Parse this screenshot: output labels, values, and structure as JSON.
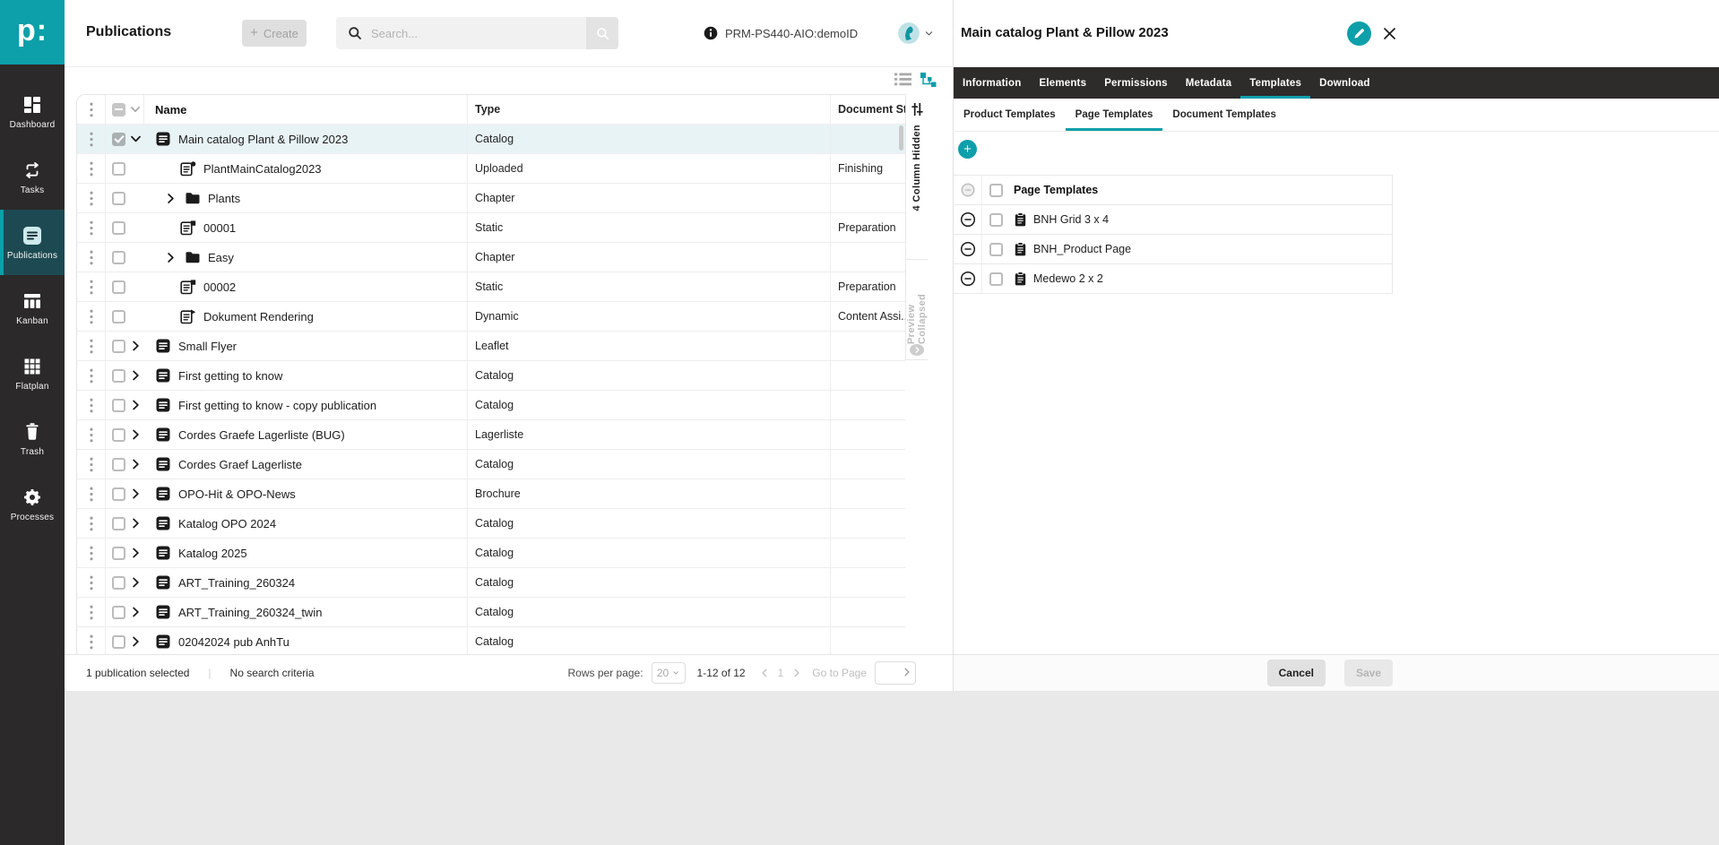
{
  "colors": {
    "accent": "#0d9faa",
    "sidebar_bg": "#2b2929",
    "tabbar_bg": "#2e2b2b",
    "selected_row_bg": "#e8f3f6"
  },
  "sidebar": {
    "logo_text": "p:",
    "items": [
      {
        "id": "dashboard",
        "label": "Dashboard",
        "icon": "dashboard",
        "active": false
      },
      {
        "id": "tasks",
        "label": "Tasks",
        "icon": "tasks",
        "active": false
      },
      {
        "id": "publications",
        "label": "Publications",
        "icon": "publications",
        "active": true
      },
      {
        "id": "kanban",
        "label": "Kanban",
        "icon": "kanban",
        "active": false
      },
      {
        "id": "flatplan",
        "label": "Flatplan",
        "icon": "flatplan",
        "active": false
      },
      {
        "id": "trash",
        "label": "Trash",
        "icon": "trash",
        "active": false
      },
      {
        "id": "processes",
        "label": "Processes",
        "icon": "processes",
        "active": false
      }
    ]
  },
  "header": {
    "title": "Publications",
    "create_label": "Create",
    "search_placeholder": "Search...",
    "env_label": "PRM-PS440-AIO:demoID"
  },
  "main_table": {
    "columns": {
      "name": "Name",
      "type": "Type",
      "status": "Document St..."
    },
    "rows": [
      {
        "name": "Main catalog Plant & Pillow 2023",
        "type": "Catalog",
        "status": "",
        "icon": "catalog",
        "depth": 0,
        "expander": "down",
        "selected": true,
        "checked": true
      },
      {
        "name": "PlantMainCatalog2023",
        "type": "Uploaded",
        "status": "Finishing",
        "icon": "doc-uploaded",
        "depth": 1,
        "expander": null,
        "selected": false,
        "checked": false
      },
      {
        "name": "Plants",
        "type": "Chapter",
        "status": "",
        "icon": "folder",
        "depth": 1,
        "expander": "right",
        "selected": false,
        "checked": false
      },
      {
        "name": "00001",
        "type": "Static",
        "status": "Preparation",
        "icon": "doc-static",
        "depth": 1,
        "expander": null,
        "selected": false,
        "checked": false
      },
      {
        "name": "Easy",
        "type": "Chapter",
        "status": "",
        "icon": "folder",
        "depth": 1,
        "expander": "right",
        "selected": false,
        "checked": false
      },
      {
        "name": "00002",
        "type": "Static",
        "status": "Preparation",
        "icon": "doc-static",
        "depth": 1,
        "expander": null,
        "selected": false,
        "checked": false
      },
      {
        "name": "Dokument Rendering",
        "type": "Dynamic",
        "status": "Content Assi...",
        "icon": "doc-dynamic",
        "depth": 1,
        "expander": null,
        "selected": false,
        "checked": false
      },
      {
        "name": "Small Flyer",
        "type": "Leaflet",
        "status": "",
        "icon": "catalog",
        "depth": 0,
        "expander": "right",
        "selected": false,
        "checked": false
      },
      {
        "name": "First getting to know",
        "type": "Catalog",
        "status": "",
        "icon": "catalog",
        "depth": 0,
        "expander": "right",
        "selected": false,
        "checked": false
      },
      {
        "name": "First getting to know - copy publication",
        "type": "Catalog",
        "status": "",
        "icon": "catalog",
        "depth": 0,
        "expander": "right",
        "selected": false,
        "checked": false
      },
      {
        "name": "Cordes Graefe Lagerliste (BUG)",
        "type": "Lagerliste",
        "status": "",
        "icon": "catalog",
        "depth": 0,
        "expander": "right",
        "selected": false,
        "checked": false
      },
      {
        "name": "Cordes Graef Lagerliste",
        "type": "Catalog",
        "status": "",
        "icon": "catalog",
        "depth": 0,
        "expander": "right",
        "selected": false,
        "checked": false
      },
      {
        "name": "OPO-Hit & OPO-News",
        "type": "Brochure",
        "status": "",
        "icon": "catalog",
        "depth": 0,
        "expander": "right",
        "selected": false,
        "checked": false
      },
      {
        "name": "Katalog OPO 2024",
        "type": "Catalog",
        "status": "",
        "icon": "catalog",
        "depth": 0,
        "expander": "right",
        "selected": false,
        "checked": false
      },
      {
        "name": "Katalog 2025",
        "type": "Catalog",
        "status": "",
        "icon": "catalog",
        "depth": 0,
        "expander": "right",
        "selected": false,
        "checked": false
      },
      {
        "name": "ART_Training_260324",
        "type": "Catalog",
        "status": "",
        "icon": "catalog",
        "depth": 0,
        "expander": "right",
        "selected": false,
        "checked": false
      },
      {
        "name": "ART_Training_260324_twin",
        "type": "Catalog",
        "status": "",
        "icon": "catalog",
        "depth": 0,
        "expander": "right",
        "selected": false,
        "checked": false
      },
      {
        "name": "02042024 pub AnhTu",
        "type": "Catalog",
        "status": "",
        "icon": "catalog",
        "depth": 0,
        "expander": "right",
        "selected": false,
        "checked": false
      }
    ]
  },
  "strips": {
    "columns_hidden": "4 Column Hidden",
    "preview": "Preview Collapsed"
  },
  "footer": {
    "selected_text": "1 publication selected",
    "divider": "|",
    "criteria_text": "No search criteria",
    "rows_per_page_label": "Rows per page:",
    "rows_per_page_value": "20",
    "range_text": "1-12 of 12",
    "page_number": "1",
    "goto_label": "Go to Page"
  },
  "panel": {
    "title": "Main catalog Plant & Pillow 2023",
    "tabs": [
      {
        "label": "Information",
        "active": false
      },
      {
        "label": "Elements",
        "active": false
      },
      {
        "label": "Permissions",
        "active": false
      },
      {
        "label": "Metadata",
        "active": false
      },
      {
        "label": "Templates",
        "active": true
      },
      {
        "label": "Download",
        "active": false
      }
    ],
    "subtabs": [
      {
        "label": "Product Templates",
        "active": false
      },
      {
        "label": "Page Templates",
        "active": true
      },
      {
        "label": "Document Templates",
        "active": false
      }
    ],
    "add_label": "+",
    "templates_table": {
      "header": "Page Templates",
      "rows": [
        {
          "name": "BNH Grid 3 x 4"
        },
        {
          "name": "BNH_Product Page"
        },
        {
          "name": "Medewo 2 x 2"
        }
      ]
    },
    "cancel_label": "Cancel",
    "save_label": "Save"
  }
}
